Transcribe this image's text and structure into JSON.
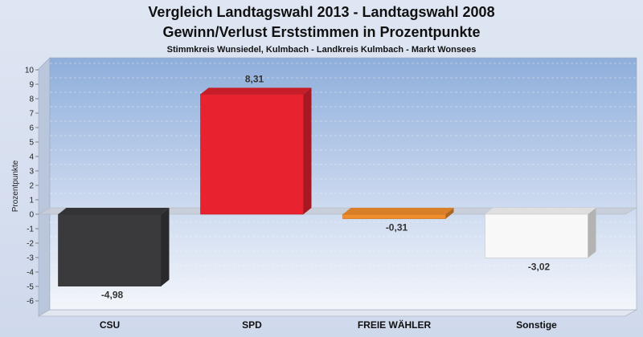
{
  "chart_data": {
    "type": "bar",
    "title": "Vergleich Landtagswahl 2013 - Landtagswahl 2008",
    "subtitle": "Gewinn/Verlust Erststimmen in Prozentpunkte",
    "subsubtitle": "Stimmkreis Wunsiedel, Kulmbach - Landkreis Kulmbach - Markt Wonsees",
    "ylabel": "Prozentpunkte",
    "xlabel": "",
    "ylim": [
      -7,
      10.7
    ],
    "yticks": [
      10,
      9,
      8,
      7,
      6,
      5,
      4,
      3,
      2,
      1,
      0,
      -1,
      -2,
      -3,
      -4,
      -5,
      -6
    ],
    "ytick_labels": [
      "10",
      "9",
      "8",
      "7",
      "6",
      "5",
      "4",
      "3",
      "2",
      "1",
      "0",
      "-1",
      "-2",
      "-3",
      "-4",
      "-5",
      "-6"
    ],
    "categories": [
      "CSU",
      "SPD",
      "FREIE WÄHLER",
      "Sonstige"
    ],
    "values": [
      -4.98,
      8.31,
      -0.31,
      -3.02
    ],
    "value_labels": [
      "-4,98",
      "8,31",
      "-0,31",
      "-3,02"
    ],
    "colors": [
      "#3a3a3d",
      "#e8232f",
      "#f08d2c",
      "#f8f8f8"
    ],
    "grid": true,
    "legend": "none"
  }
}
